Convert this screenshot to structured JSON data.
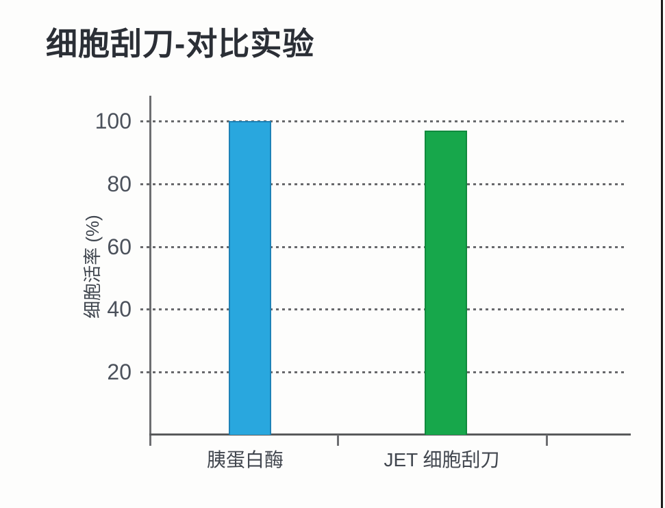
{
  "chart": {
    "title": "细胞刮刀-对比实验"
  },
  "chart_data": {
    "type": "bar",
    "title": "细胞刮刀-对比实验",
    "categories": [
      "胰蛋白酶",
      "JET 细胞刮刀"
    ],
    "values": [
      100,
      97
    ],
    "bar_colors": [
      "#29a7de",
      "#17a74b"
    ],
    "bar_edge_colors": [
      "#1d82b7",
      "#108a3d"
    ],
    "xlabel": "",
    "ylabel": "细胞活率 (%)",
    "ylim": [
      0,
      108
    ],
    "yticks": [
      20,
      40,
      60,
      80,
      100
    ],
    "grid": "horizontal-dotted",
    "legend": "none",
    "colors": {
      "title_text": "#2b2f36",
      "axis_line": "#6d6e71",
      "grid_dots": "#68696c",
      "tick_text": "#4b515b",
      "page_right_border": "#1b1b1b",
      "background": "#fdfdfc"
    }
  }
}
